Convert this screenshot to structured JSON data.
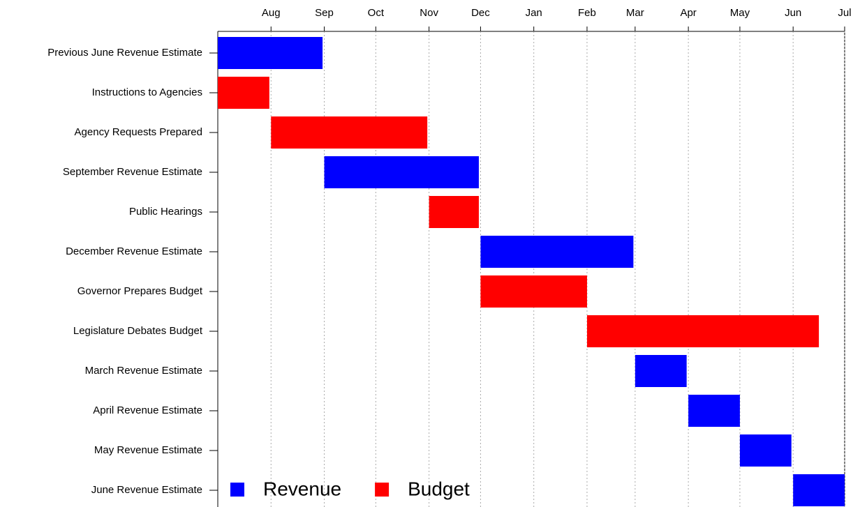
{
  "chart_data": {
    "type": "gantt",
    "categories": [
      "Previous June Revenue Estimate",
      "Instructions to Agencies",
      "Agency Requests Prepared",
      "September Revenue Estimate",
      "Public Hearings",
      "December Revenue Estimate",
      "Governor Prepares Budget",
      "Legislature Debates Budget",
      "March Revenue Estimate",
      "April Revenue Estimate",
      "May Revenue Estimate",
      "June Revenue Estimate"
    ],
    "series": [
      {
        "name": "Revenue",
        "color": "#0000ff",
        "start": [
          0,
          null,
          null,
          62,
          null,
          153,
          null,
          null,
          243,
          274,
          304,
          335
        ],
        "end": [
          61,
          null,
          null,
          152,
          null,
          242,
          null,
          null,
          273,
          304,
          334,
          365
        ]
      },
      {
        "name": "Budget",
        "color": "#ff0000",
        "start": [
          null,
          0,
          31,
          null,
          123,
          null,
          153,
          215,
          null,
          null,
          null,
          null
        ],
        "end": [
          null,
          30,
          122,
          null,
          152,
          null,
          215,
          350,
          null,
          null,
          null,
          null
        ]
      }
    ],
    "xlim": [
      0,
      365
    ],
    "xticks": [
      {
        "value": 31,
        "label": "Aug"
      },
      {
        "value": 62,
        "label": "Sep"
      },
      {
        "value": 92,
        "label": "Oct"
      },
      {
        "value": 123,
        "label": "Nov"
      },
      {
        "value": 153,
        "label": "Dec"
      },
      {
        "value": 184,
        "label": "Jan"
      },
      {
        "value": 215,
        "label": "Feb"
      },
      {
        "value": 243,
        "label": "Mar"
      },
      {
        "value": 274,
        "label": "Apr"
      },
      {
        "value": 304,
        "label": "May"
      },
      {
        "value": 335,
        "label": "Jun"
      },
      {
        "value": 365,
        "label": "Jul"
      }
    ],
    "grid": true,
    "legend": "bottom-left"
  }
}
